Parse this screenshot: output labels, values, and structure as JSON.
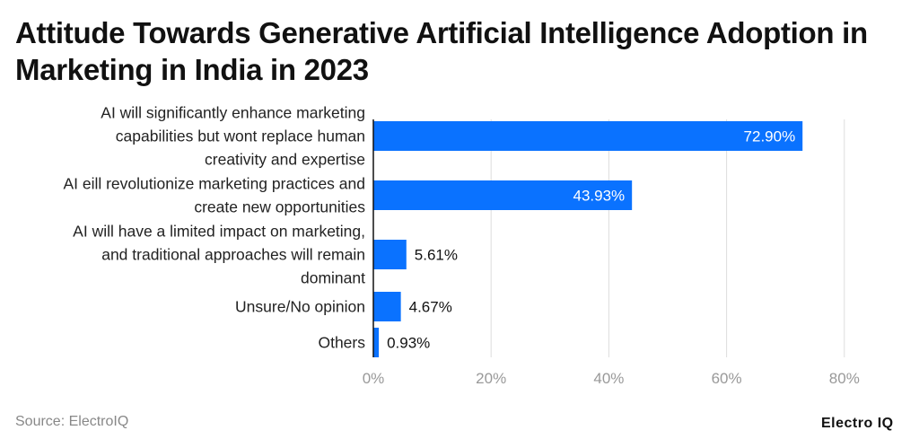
{
  "chart_data": {
    "type": "bar",
    "orientation": "horizontal",
    "title": "Attitude Towards Generative Artificial Intelligence Adoption in Marketing in India in 2023",
    "categories": [
      [
        "AI will significantly enhance marketing",
        "capabilities but wont replace human",
        "creativity and expertise"
      ],
      [
        "AI eill revolutionize marketing practices and",
        "create new opportunities"
      ],
      [
        "AI will have a limited impact on marketing,",
        "and traditional approaches will remain",
        "dominant"
      ],
      [
        "Unsure/No opinion"
      ],
      [
        "Others"
      ]
    ],
    "values": [
      72.9,
      43.93,
      5.61,
      4.67,
      0.93
    ],
    "data_labels": [
      "72.90%",
      "43.93%",
      "5.61%",
      "4.67%",
      "0.93%"
    ],
    "xlim": [
      0,
      80
    ],
    "xticks": [
      0,
      20,
      40,
      60,
      80
    ],
    "xtick_labels": [
      "0%",
      "20%",
      "40%",
      "60%",
      "80%"
    ],
    "xlabel": "",
    "ylabel": "",
    "grid": "vertical",
    "bar_color": "#0a72ff"
  },
  "footer": {
    "source": "Source: ElectroIQ",
    "logo": "Electro IQ"
  }
}
